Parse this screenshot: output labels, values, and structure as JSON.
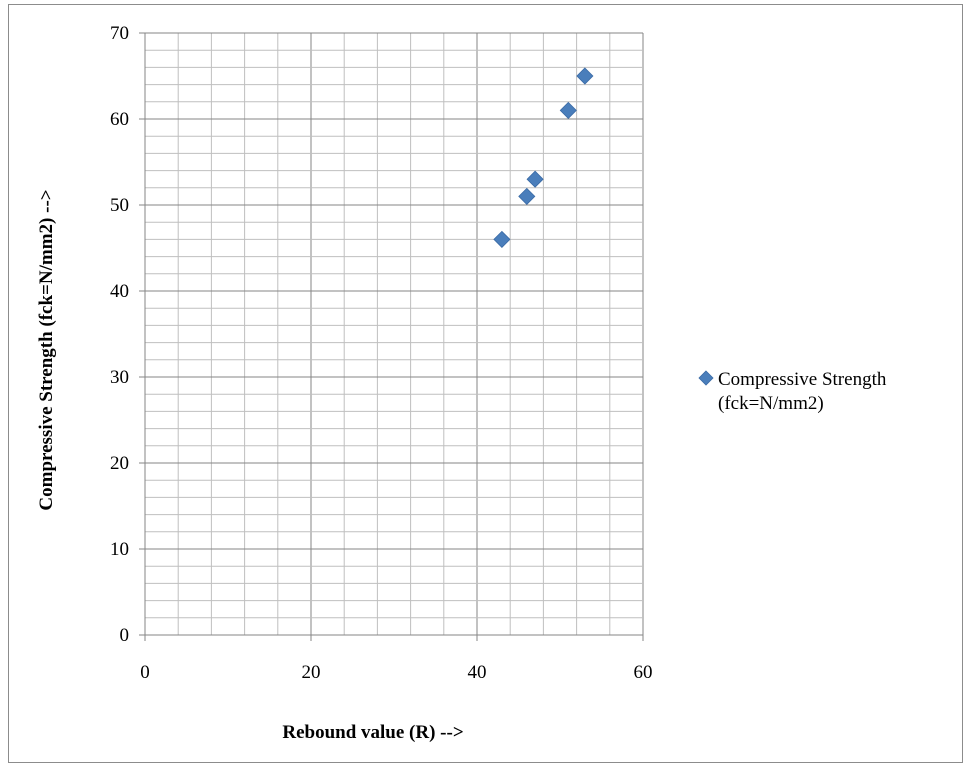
{
  "chart_data": {
    "type": "scatter",
    "xlabel": "Rebound value (R) -->",
    "ylabel": "Compressive Strength (fck=N/mm2) -->",
    "xlim": [
      0,
      60
    ],
    "ylim": [
      0,
      70
    ],
    "x_ticks": [
      0,
      20,
      40,
      60
    ],
    "y_ticks": [
      0,
      10,
      20,
      30,
      40,
      50,
      60,
      70
    ],
    "x_minor_step": 4,
    "y_minor_step": 2,
    "grid": true,
    "legend_position": "right",
    "series": [
      {
        "name": "Compressive Strength (fck=N/mm2)",
        "legend_lines": [
          "Compressive Strength",
          "(fck=N/mm2)"
        ],
        "marker": "diamond",
        "color": "#4a7ebb",
        "points": [
          {
            "x": 43,
            "y": 46
          },
          {
            "x": 46,
            "y": 51
          },
          {
            "x": 47,
            "y": 53
          },
          {
            "x": 51,
            "y": 61
          },
          {
            "x": 53,
            "y": 65
          }
        ]
      }
    ]
  }
}
